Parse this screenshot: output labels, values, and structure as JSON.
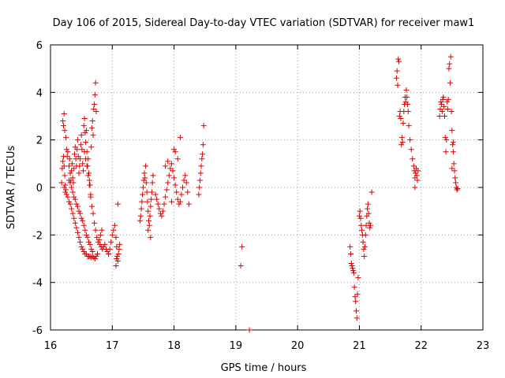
{
  "chart_data": {
    "type": "scatter",
    "title": "Day 106 of 2015, Sidereal Day-to-day VTEC variation (SDTVAR) for receiver maw1",
    "xlabel": "GPS time / hours",
    "ylabel": "SDTVAR / TECUs",
    "xlim": [
      16,
      23
    ],
    "ylim": [
      -6,
      6
    ],
    "xticks": [
      "16",
      "17",
      "18",
      "19",
      "20",
      "21",
      "22",
      "23"
    ],
    "yticks": [
      "-6",
      "-4",
      "-2",
      "0",
      "2",
      "4",
      "6"
    ],
    "grid": true,
    "marker": "plus",
    "color": "#e00000",
    "series": [
      {
        "name": "maw1",
        "points": [
          [
            16.18,
            0.2
          ],
          [
            16.19,
            0.8
          ],
          [
            16.2,
            1.1
          ],
          [
            16.21,
            1.3
          ],
          [
            16.22,
            0.9
          ],
          [
            16.23,
            0.5
          ],
          [
            16.24,
            0.1
          ],
          [
            16.25,
            -0.1
          ],
          [
            16.2,
            2.8
          ],
          [
            16.21,
            2.6
          ],
          [
            16.22,
            3.1
          ],
          [
            16.23,
            2.4
          ],
          [
            16.25,
            2.1
          ],
          [
            16.26,
            1.6
          ],
          [
            16.27,
            1.3
          ],
          [
            16.28,
            1.5
          ],
          [
            16.3,
            0.9
          ],
          [
            16.31,
            1.2
          ],
          [
            16.32,
            0.6
          ],
          [
            16.33,
            0.3
          ],
          [
            16.34,
            0.7
          ],
          [
            16.35,
            1.0
          ],
          [
            16.36,
            0.4
          ],
          [
            16.37,
            0.2
          ],
          [
            16.38,
            0.8
          ],
          [
            16.39,
            1.4
          ],
          [
            16.4,
            1.7
          ],
          [
            16.41,
            1.2
          ],
          [
            16.42,
            0.9
          ],
          [
            16.43,
            1.6
          ],
          [
            16.44,
            2.0
          ],
          [
            16.45,
            1.3
          ],
          [
            16.46,
            0.6
          ],
          [
            16.47,
            0.9
          ],
          [
            16.48,
            1.2
          ],
          [
            16.49,
            1.8
          ],
          [
            16.5,
            2.2
          ],
          [
            16.51,
            1.6
          ],
          [
            16.52,
            1.0
          ],
          [
            16.53,
            0.7
          ],
          [
            16.54,
            2.6
          ],
          [
            16.55,
            2.9
          ],
          [
            16.56,
            2.3
          ],
          [
            16.57,
            1.9
          ],
          [
            16.58,
            2.4
          ],
          [
            16.59,
            1.5
          ],
          [
            16.6,
            0.9
          ],
          [
            16.61,
            1.2
          ],
          [
            16.62,
            0.6
          ],
          [
            16.63,
            0.3
          ],
          [
            16.64,
            0.1
          ],
          [
            16.65,
            -0.3
          ],
          [
            16.66,
            1.7
          ],
          [
            16.67,
            2.5
          ],
          [
            16.68,
            2.8
          ],
          [
            16.69,
            2.2
          ],
          [
            16.7,
            3.3
          ],
          [
            16.71,
            3.5
          ],
          [
            16.72,
            3.9
          ],
          [
            16.73,
            4.4
          ],
          [
            16.74,
            3.2
          ],
          [
            16.22,
            0.0
          ],
          [
            16.24,
            -0.2
          ],
          [
            16.26,
            -0.3
          ],
          [
            16.28,
            -0.4
          ],
          [
            16.3,
            -0.6
          ],
          [
            16.32,
            -0.7
          ],
          [
            16.34,
            -0.9
          ],
          [
            16.36,
            -1.1
          ],
          [
            16.38,
            -1.3
          ],
          [
            16.4,
            -1.5
          ],
          [
            16.42,
            -1.7
          ],
          [
            16.44,
            -1.9
          ],
          [
            16.46,
            -2.1
          ],
          [
            16.48,
            -2.3
          ],
          [
            16.5,
            -2.5
          ],
          [
            16.52,
            -2.6
          ],
          [
            16.54,
            -2.7
          ],
          [
            16.56,
            -2.8
          ],
          [
            16.58,
            -2.8
          ],
          [
            16.6,
            -2.9
          ],
          [
            16.62,
            -2.9
          ],
          [
            16.64,
            -2.9
          ],
          [
            16.66,
            -2.95
          ],
          [
            16.68,
            -2.9
          ],
          [
            16.7,
            -2.95
          ],
          [
            16.72,
            -3.0
          ],
          [
            16.74,
            -2.9
          ],
          [
            16.76,
            -2.8
          ],
          [
            16.3,
            0.3
          ],
          [
            16.32,
            0.2
          ],
          [
            16.34,
            0.0
          ],
          [
            16.36,
            -0.2
          ],
          [
            16.38,
            -0.4
          ],
          [
            16.4,
            -0.5
          ],
          [
            16.42,
            -0.7
          ],
          [
            16.44,
            -0.8
          ],
          [
            16.46,
            -1.0
          ],
          [
            16.48,
            -1.1
          ],
          [
            16.5,
            -1.3
          ],
          [
            16.52,
            -1.4
          ],
          [
            16.54,
            -1.6
          ],
          [
            16.56,
            -1.8
          ],
          [
            16.58,
            -2.0
          ],
          [
            16.6,
            -2.1
          ],
          [
            16.62,
            -2.3
          ],
          [
            16.64,
            -2.4
          ],
          [
            16.66,
            -2.6
          ],
          [
            16.68,
            -2.7
          ],
          [
            16.55,
            1.5
          ],
          [
            16.57,
            1.2
          ],
          [
            16.59,
            0.9
          ],
          [
            16.61,
            0.5
          ],
          [
            16.63,
            0.1
          ],
          [
            16.65,
            -0.4
          ],
          [
            16.67,
            -0.8
          ],
          [
            16.69,
            -1.1
          ],
          [
            16.71,
            -1.5
          ],
          [
            16.73,
            -1.8
          ],
          [
            16.75,
            -2.1
          ],
          [
            16.77,
            -2.3
          ],
          [
            16.79,
            -2.2
          ],
          [
            16.81,
            -2.0
          ],
          [
            16.83,
            -1.8
          ],
          [
            16.8,
            -2.4
          ],
          [
            16.82,
            -2.5
          ],
          [
            16.84,
            -2.6
          ],
          [
            16.86,
            -2.5
          ],
          [
            16.88,
            -2.4
          ],
          [
            16.9,
            -2.6
          ],
          [
            16.92,
            -2.7
          ],
          [
            16.94,
            -2.8
          ],
          [
            16.96,
            -2.6
          ],
          [
            16.98,
            -2.3
          ],
          [
            17.0,
            -2.0
          ],
          [
            17.02,
            -1.8
          ],
          [
            17.04,
            -1.6
          ],
          [
            17.06,
            -2.1
          ],
          [
            17.07,
            -2.5
          ],
          [
            17.08,
            -2.9
          ],
          [
            17.09,
            -3.1
          ],
          [
            17.1,
            -2.8
          ],
          [
            17.11,
            -2.6
          ],
          [
            17.06,
            -3.3
          ],
          [
            17.07,
            -3.0
          ],
          [
            17.09,
            -0.7
          ],
          [
            17.12,
            -2.4
          ],
          [
            17.45,
            -1.4
          ],
          [
            17.46,
            -1.2
          ],
          [
            17.47,
            -0.9
          ],
          [
            17.48,
            -0.6
          ],
          [
            17.49,
            -0.3
          ],
          [
            17.5,
            0.0
          ],
          [
            17.51,
            0.3
          ],
          [
            17.52,
            0.6
          ],
          [
            17.53,
            0.4
          ],
          [
            17.54,
            0.9
          ],
          [
            17.55,
            0.2
          ],
          [
            17.56,
            -0.2
          ],
          [
            17.57,
            -0.6
          ],
          [
            17.58,
            -1.0
          ],
          [
            17.59,
            -1.4
          ],
          [
            17.6,
            -1.6
          ],
          [
            17.61,
            -1.2
          ],
          [
            17.62,
            -0.8
          ],
          [
            17.63,
            -0.5
          ],
          [
            17.64,
            -0.2
          ],
          [
            17.65,
            0.2
          ],
          [
            17.66,
            0.5
          ],
          [
            17.62,
            -2.1
          ],
          [
            17.58,
            -1.8
          ],
          [
            17.7,
            -0.3
          ],
          [
            17.72,
            -0.5
          ],
          [
            17.74,
            -0.7
          ],
          [
            17.76,
            -0.9
          ],
          [
            17.78,
            -1.1
          ],
          [
            17.8,
            -1.2
          ],
          [
            17.82,
            -1.0
          ],
          [
            17.84,
            -0.7
          ],
          [
            17.86,
            -0.4
          ],
          [
            17.88,
            -0.1
          ],
          [
            17.9,
            0.2
          ],
          [
            17.92,
            0.5
          ],
          [
            17.94,
            0.8
          ],
          [
            17.96,
            1.0
          ],
          [
            17.98,
            0.7
          ],
          [
            18.0,
            0.4
          ],
          [
            18.02,
            0.1
          ],
          [
            18.04,
            -0.2
          ],
          [
            18.06,
            -0.5
          ],
          [
            18.08,
            -0.7
          ],
          [
            18.1,
            -0.6
          ],
          [
            18.12,
            -0.3
          ],
          [
            18.14,
            0.0
          ],
          [
            18.16,
            0.3
          ],
          [
            18.18,
            0.5
          ],
          [
            18.2,
            0.2
          ],
          [
            18.22,
            -0.2
          ],
          [
            18.24,
            -0.7
          ],
          [
            17.86,
            0.9
          ],
          [
            17.9,
            1.1
          ],
          [
            17.96,
            -0.6
          ],
          [
            18.0,
            1.6
          ],
          [
            18.02,
            1.5
          ],
          [
            18.1,
            2.1
          ],
          [
            18.06,
            1.2
          ],
          [
            18.4,
            -0.3
          ],
          [
            18.41,
            0.0
          ],
          [
            18.42,
            0.3
          ],
          [
            18.43,
            0.6
          ],
          [
            18.44,
            0.9
          ],
          [
            18.45,
            1.2
          ],
          [
            18.46,
            1.4
          ],
          [
            18.47,
            1.8
          ],
          [
            18.48,
            2.6
          ],
          [
            19.1,
            -2.5
          ],
          [
            19.08,
            -3.3
          ],
          [
            19.22,
            -6.0
          ],
          [
            20.85,
            -2.5
          ],
          [
            20.86,
            -2.8
          ],
          [
            20.87,
            -3.2
          ],
          [
            20.88,
            -3.3
          ],
          [
            20.89,
            -3.4
          ],
          [
            20.9,
            -3.5
          ],
          [
            20.91,
            -3.6
          ],
          [
            20.92,
            -4.2
          ],
          [
            20.93,
            -4.6
          ],
          [
            20.94,
            -4.8
          ],
          [
            20.95,
            -5.2
          ],
          [
            20.96,
            -5.5
          ],
          [
            20.97,
            -4.5
          ],
          [
            20.98,
            -3.8
          ],
          [
            21.0,
            -1.2
          ],
          [
            21.01,
            -1.0
          ],
          [
            21.02,
            -1.3
          ],
          [
            21.03,
            -1.6
          ],
          [
            21.04,
            -1.8
          ],
          [
            21.05,
            -2.0
          ],
          [
            21.06,
            -2.3
          ],
          [
            21.07,
            -2.6
          ],
          [
            21.08,
            -2.9
          ],
          [
            21.09,
            -2.5
          ],
          [
            21.1,
            -2.0
          ],
          [
            21.11,
            -1.6
          ],
          [
            21.12,
            -1.2
          ],
          [
            21.13,
            -0.9
          ],
          [
            21.14,
            -0.7
          ],
          [
            21.15,
            -1.1
          ],
          [
            21.16,
            -1.5
          ],
          [
            21.17,
            -1.7
          ],
          [
            21.18,
            -1.6
          ],
          [
            21.2,
            -0.2
          ],
          [
            21.6,
            4.6
          ],
          [
            21.61,
            4.9
          ],
          [
            21.62,
            4.3
          ],
          [
            21.63,
            5.4
          ],
          [
            21.64,
            5.3
          ],
          [
            21.65,
            3.0
          ],
          [
            21.66,
            3.2
          ],
          [
            21.67,
            2.9
          ],
          [
            21.68,
            1.8
          ],
          [
            21.69,
            2.1
          ],
          [
            21.7,
            1.9
          ],
          [
            21.71,
            2.7
          ],
          [
            21.72,
            3.2
          ],
          [
            21.73,
            3.5
          ],
          [
            21.74,
            3.8
          ],
          [
            21.75,
            3.6
          ],
          [
            21.76,
            4.1
          ],
          [
            21.77,
            3.8
          ],
          [
            21.78,
            3.5
          ],
          [
            21.79,
            3.2
          ],
          [
            21.8,
            2.6
          ],
          [
            21.82,
            2.0
          ],
          [
            21.84,
            1.6
          ],
          [
            21.86,
            1.2
          ],
          [
            21.88,
            0.9
          ],
          [
            21.89,
            0.7
          ],
          [
            21.9,
            0.4
          ],
          [
            21.91,
            0.6
          ],
          [
            21.92,
            0.8
          ],
          [
            21.93,
            0.5
          ],
          [
            21.94,
            0.3
          ],
          [
            21.95,
            0.7
          ],
          [
            21.9,
            0.0
          ],
          [
            22.3,
            3.0
          ],
          [
            22.31,
            3.3
          ],
          [
            22.32,
            3.6
          ],
          [
            22.33,
            3.5
          ],
          [
            22.34,
            3.2
          ],
          [
            22.35,
            3.7
          ],
          [
            22.36,
            3.8
          ],
          [
            22.37,
            3.4
          ],
          [
            22.38,
            3.0
          ],
          [
            22.39,
            2.1
          ],
          [
            22.4,
            1.5
          ],
          [
            22.41,
            2.0
          ],
          [
            22.42,
            3.6
          ],
          [
            22.43,
            3.3
          ],
          [
            22.44,
            3.7
          ],
          [
            22.45,
            5.0
          ],
          [
            22.46,
            5.2
          ],
          [
            22.47,
            4.4
          ],
          [
            22.48,
            5.5
          ],
          [
            22.49,
            3.2
          ],
          [
            22.5,
            2.4
          ],
          [
            22.51,
            1.8
          ],
          [
            22.52,
            1.5
          ],
          [
            22.53,
            1.0
          ],
          [
            22.54,
            0.7
          ],
          [
            22.55,
            0.4
          ],
          [
            22.56,
            0.2
          ],
          [
            22.57,
            0.0
          ],
          [
            22.58,
            -0.1
          ],
          [
            22.59,
            -0.05
          ],
          [
            22.5,
            0.8
          ],
          [
            22.52,
            1.9
          ]
        ]
      }
    ]
  }
}
